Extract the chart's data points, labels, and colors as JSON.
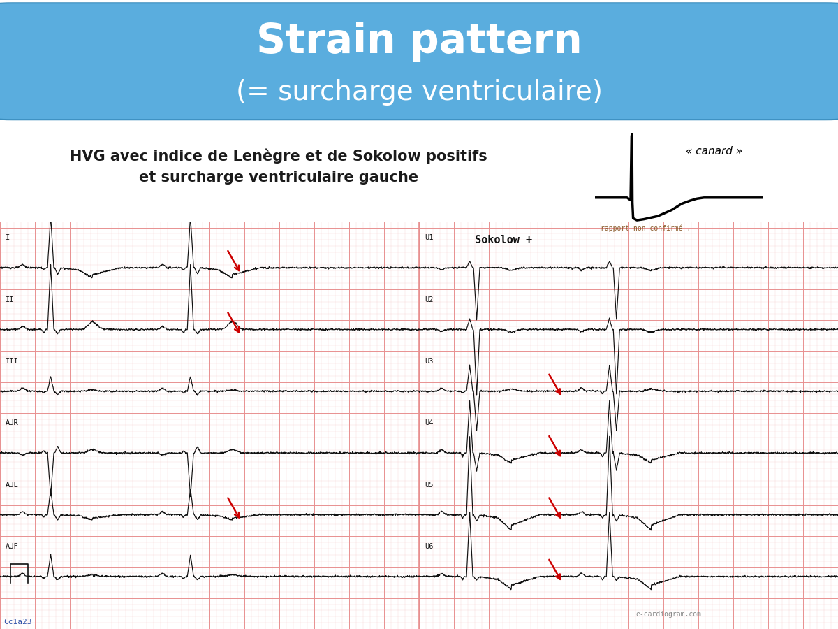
{
  "title_main": "Strain pattern",
  "title_sub": "(= surcharge ventriculaire)",
  "title_bg_color": "#5aadde",
  "title_text_color": "#ffffff",
  "subtitle_text": "HVG avec indice de Lenègre et de Sokolow positifs\net surcharge ventriculaire gauche",
  "subtitle_color": "#1a1a1a",
  "canard_label": "« canard »",
  "ecg_bg_color": "#fceaea",
  "ecg_grid_major_color": "#e89090",
  "ecg_grid_minor_color": "#f5cccc",
  "ecg_line_color": "#111111",
  "arrow_color": "#cc0000",
  "watermark_text": "e-cardiogram.com",
  "rapport_text": "rapport non confirmé .",
  "sokolow_text": "Sokolow +",
  "copyright_text": "Cc1a23",
  "bg_color": "#ffffff",
  "subtitle_fontsize": 15,
  "title_main_fontsize": 42,
  "title_sub_fontsize": 28
}
